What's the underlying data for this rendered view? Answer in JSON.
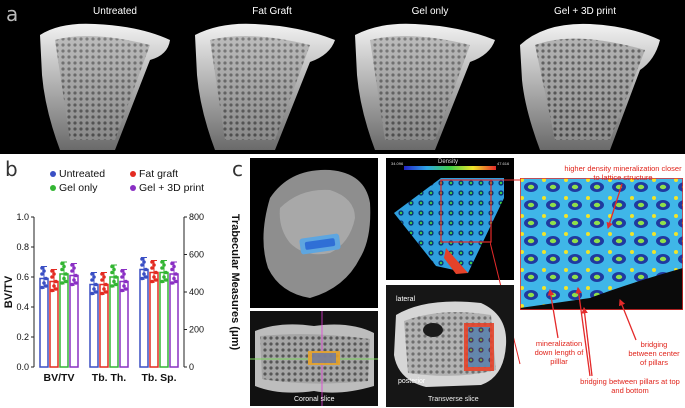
{
  "panel_labels": {
    "a": "a",
    "b": "b",
    "c": "c"
  },
  "panel_a": {
    "titles": [
      "Untreated",
      "Fat Graft",
      "Gel only",
      "Gel + 3D print"
    ]
  },
  "panel_b": {
    "legend": [
      "Untreated",
      "Fat graft",
      "Gel only",
      "Gel + 3D print"
    ],
    "colors": [
      "#3a4fc4",
      "#e32b22",
      "#33b533",
      "#8a2fc4"
    ],
    "ylabel_left": "BV/TV",
    "ylabel_right": "Trabecular Measures (μm)",
    "left_ticks": [
      "0.0",
      "0.2",
      "0.4",
      "0.6",
      "0.8",
      "1.0"
    ],
    "right_ticks": [
      "0",
      "200",
      "400",
      "600",
      "800"
    ],
    "categories": [
      "BV/TV",
      "Tb. Th.",
      "Tb. Sp."
    ]
  },
  "panel_c": {
    "density_label": "Density",
    "density_min": "34.096",
    "density_max": "47.616",
    "coronal_label": "Coronal slice",
    "transverse_label": "Transverse slice",
    "lateral_label": "lateral",
    "posterior_label": "posterior",
    "annotations": {
      "top": "higher density mineralization closer to lattice structure",
      "left": "mineralization down length of pilllar",
      "middle": "bridging between pillars at top and bottom",
      "right": "bridging between center of pillars"
    }
  },
  "chart_data": {
    "type": "bar",
    "categories": [
      "BV/TV",
      "Tb. Th.",
      "Tb. Sp."
    ],
    "series": [
      {
        "name": "Untreated",
        "values": [
          0.59,
          0.55,
          0.65
        ]
      },
      {
        "name": "Fat graft",
        "values": [
          0.57,
          0.55,
          0.63
        ]
      },
      {
        "name": "Gel only",
        "values": [
          0.62,
          0.6,
          0.63
        ]
      },
      {
        "name": "Gel + 3D print",
        "values": [
          0.61,
          0.57,
          0.62
        ]
      }
    ],
    "ylim": [
      0,
      1.0
    ],
    "ylabel": "BV/TV",
    "ylabel_right": "Trabecular Measures (μm)",
    "ylim_right": [
      0,
      800
    ]
  }
}
